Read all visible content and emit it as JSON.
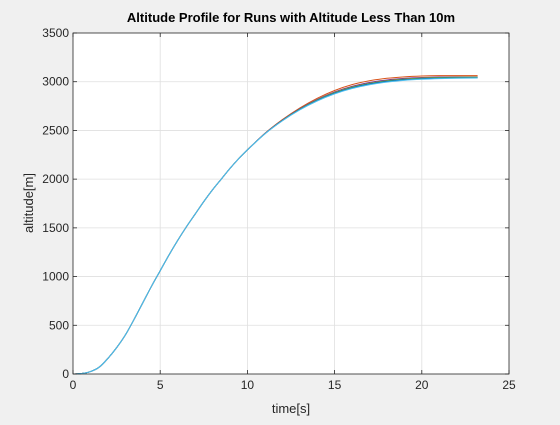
{
  "chart_data": {
    "type": "line",
    "title": "Altitude Profile for Runs with Altitude Less Than 10m",
    "xlabel": "time[s]",
    "ylabel": "altitude[m]",
    "xlim": [
      0,
      25
    ],
    "ylim": [
      0,
      3500
    ],
    "xticks": [
      0,
      5,
      10,
      15,
      20,
      25
    ],
    "yticks": [
      0,
      500,
      1000,
      1500,
      2000,
      2500,
      3000,
      3500
    ],
    "grid": true,
    "legend": "none",
    "series": [
      {
        "color": "#d95319",
        "x": [
          0,
          0.5,
          1,
          1.5,
          2,
          2.5,
          3,
          3.5,
          4,
          4.5,
          5,
          5.5,
          6,
          6.5,
          7,
          7.5,
          8,
          8.5,
          9,
          9.5,
          10,
          11,
          12,
          13,
          14,
          15,
          16,
          17,
          18,
          19,
          20,
          21,
          22,
          23.2
        ],
        "values": [
          0,
          5,
          25,
          70,
          160,
          270,
          400,
          560,
          730,
          900,
          1060,
          1220,
          1370,
          1510,
          1640,
          1770,
          1890,
          2000,
          2110,
          2210,
          2300,
          2470,
          2610,
          2730,
          2830,
          2910,
          2970,
          3010,
          3035,
          3050,
          3058,
          3062,
          3063,
          3062
        ]
      },
      {
        "color": "#7e2f8e",
        "x": [
          0,
          0.5,
          1,
          1.5,
          2,
          2.5,
          3,
          3.5,
          4,
          4.5,
          5,
          5.5,
          6,
          6.5,
          7,
          7.5,
          8,
          8.5,
          9,
          9.5,
          10,
          11,
          12,
          13,
          14,
          15,
          16,
          17,
          18,
          19,
          20,
          21,
          22,
          23.2
        ],
        "values": [
          0,
          5,
          25,
          70,
          160,
          270,
          400,
          560,
          730,
          900,
          1060,
          1220,
          1370,
          1510,
          1640,
          1770,
          1890,
          2000,
          2110,
          2210,
          2300,
          2468,
          2606,
          2722,
          2818,
          2895,
          2952,
          2992,
          3018,
          3034,
          3043,
          3048,
          3050,
          3050
        ]
      },
      {
        "color": "#77ac30",
        "x": [
          0,
          0.5,
          1,
          1.5,
          2,
          2.5,
          3,
          3.5,
          4,
          4.5,
          5,
          5.5,
          6,
          6.5,
          7,
          7.5,
          8,
          8.5,
          9,
          9.5,
          10,
          11,
          12,
          13,
          14,
          15,
          16,
          17,
          18,
          19,
          20,
          21,
          22,
          23.2
        ],
        "values": [
          0,
          5,
          25,
          70,
          160,
          270,
          400,
          560,
          730,
          900,
          1060,
          1220,
          1370,
          1510,
          1640,
          1770,
          1890,
          2000,
          2110,
          2210,
          2300,
          2466,
          2603,
          2718,
          2813,
          2888,
          2944,
          2983,
          3010,
          3027,
          3037,
          3043,
          3046,
          3047
        ]
      },
      {
        "color": "#0072bd",
        "x": [
          0,
          0.5,
          1,
          1.5,
          2,
          2.5,
          3,
          3.5,
          4,
          4.5,
          5,
          5.5,
          6,
          6.5,
          7,
          7.5,
          8,
          8.5,
          9,
          9.5,
          10,
          11,
          12,
          13,
          14,
          15,
          16,
          17,
          18,
          19,
          20,
          21,
          22,
          23.2
        ],
        "values": [
          0,
          5,
          25,
          70,
          160,
          270,
          400,
          560,
          730,
          900,
          1060,
          1220,
          1370,
          1510,
          1640,
          1770,
          1890,
          2000,
          2110,
          2210,
          2300,
          2465,
          2600,
          2714,
          2808,
          2882,
          2937,
          2976,
          3003,
          3020,
          3031,
          3037,
          3040,
          3041
        ]
      },
      {
        "color": "#4dbeee",
        "x": [
          0,
          0.5,
          1,
          1.5,
          2,
          2.5,
          3,
          3.5,
          4,
          4.5,
          5,
          5.5,
          6,
          6.5,
          7,
          7.5,
          8,
          8.5,
          9,
          9.5,
          10,
          11,
          12,
          13,
          14,
          15,
          16,
          17,
          18,
          19,
          20,
          21,
          22,
          23.2
        ],
        "values": [
          0,
          5,
          25,
          70,
          160,
          270,
          400,
          560,
          730,
          900,
          1060,
          1220,
          1370,
          1510,
          1640,
          1770,
          1890,
          2000,
          2110,
          2210,
          2300,
          2464,
          2598,
          2710,
          2802,
          2875,
          2930,
          2969,
          2996,
          3014,
          3025,
          3032,
          3036,
          3038
        ]
      }
    ]
  }
}
